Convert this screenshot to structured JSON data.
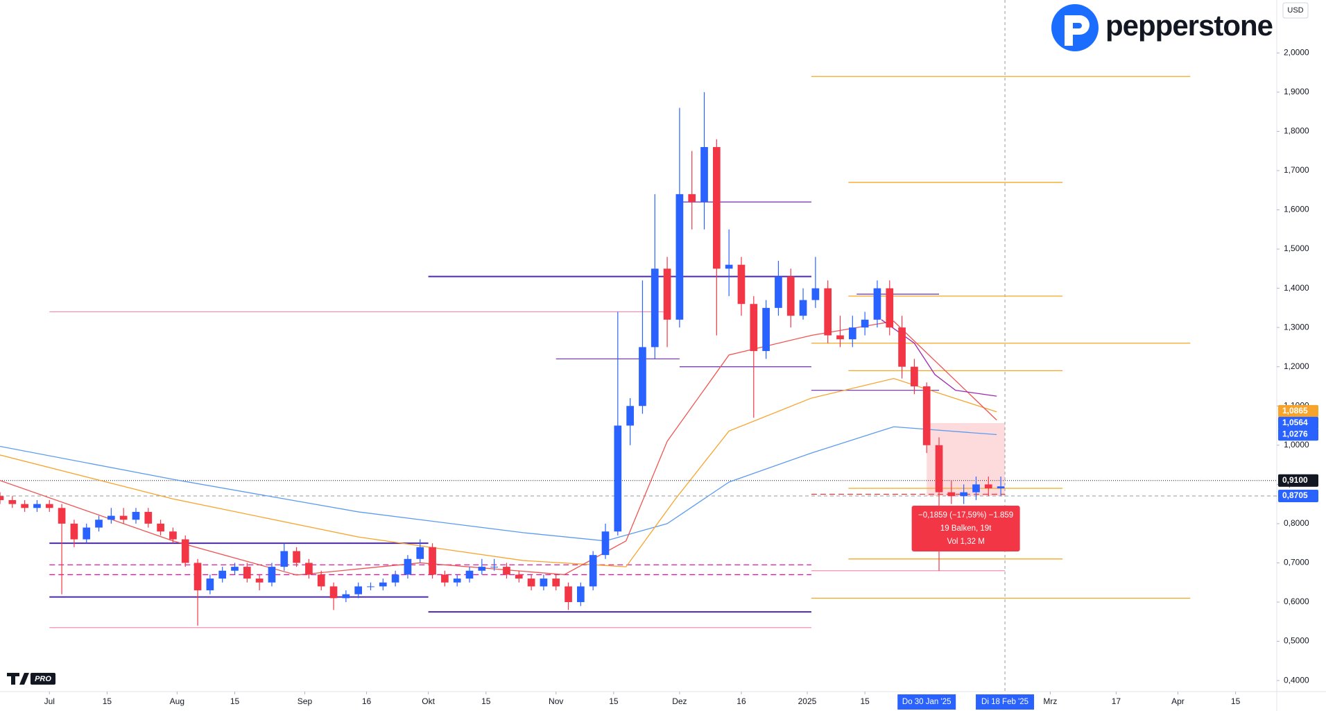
{
  "header": {
    "brand": "pepperstone",
    "tv_badge": "PRO",
    "currency": "USD"
  },
  "chart_data": {
    "type": "candlestick",
    "x": [
      -12,
      -9,
      -6,
      -3,
      0,
      3,
      6,
      9,
      12,
      15,
      18,
      21,
      24,
      27,
      30,
      33,
      36,
      39,
      42,
      45,
      48,
      51,
      54,
      57,
      60,
      63,
      66,
      69,
      72,
      75,
      78,
      81,
      84,
      87,
      90,
      93,
      96,
      99,
      102,
      105,
      108,
      111,
      114,
      117,
      120,
      123,
      126,
      129,
      132,
      135,
      138,
      141,
      144,
      147,
      150,
      153,
      156,
      159,
      162,
      165,
      168,
      171,
      174,
      177,
      180,
      183,
      186,
      189,
      192,
      195,
      198,
      201,
      204,
      207,
      210,
      213,
      216,
      219,
      222,
      225,
      228,
      231
    ],
    "open": [
      0.87,
      0.86,
      0.85,
      0.84,
      0.85,
      0.84,
      0.8,
      0.76,
      0.79,
      0.81,
      0.82,
      0.81,
      0.83,
      0.8,
      0.78,
      0.76,
      0.7,
      0.63,
      0.66,
      0.68,
      0.69,
      0.66,
      0.65,
      0.69,
      0.73,
      0.7,
      0.67,
      0.64,
      0.61,
      0.62,
      0.64,
      0.64,
      0.65,
      0.67,
      0.71,
      0.74,
      0.67,
      0.65,
      0.66,
      0.68,
      0.69,
      0.69,
      0.67,
      0.66,
      0.64,
      0.66,
      0.64,
      0.6,
      0.64,
      0.72,
      0.78,
      1.05,
      1.1,
      1.25,
      1.45,
      1.32,
      1.64,
      1.62,
      1.76,
      1.45,
      1.46,
      1.36,
      1.24,
      1.35,
      1.43,
      1.33,
      1.37,
      1.4,
      1.28,
      1.27,
      1.3,
      1.32,
      1.4,
      1.3,
      1.2,
      1.15,
      1.0,
      0.88,
      0.87,
      0.88,
      0.9,
      0.89
    ],
    "high": [
      0.88,
      0.87,
      0.86,
      0.86,
      0.86,
      0.85,
      0.81,
      0.8,
      0.82,
      0.84,
      0.84,
      0.84,
      0.84,
      0.81,
      0.79,
      0.77,
      0.71,
      0.67,
      0.69,
      0.7,
      0.7,
      0.67,
      0.7,
      0.75,
      0.74,
      0.71,
      0.68,
      0.65,
      0.63,
      0.65,
      0.65,
      0.66,
      0.68,
      0.72,
      0.76,
      0.75,
      0.68,
      0.67,
      0.69,
      0.71,
      0.71,
      0.7,
      0.68,
      0.67,
      0.67,
      0.67,
      0.65,
      0.65,
      0.73,
      0.8,
      1.34,
      1.12,
      1.42,
      1.64,
      1.48,
      1.86,
      1.75,
      1.9,
      1.78,
      1.55,
      1.48,
      1.38,
      1.37,
      1.47,
      1.45,
      1.4,
      1.48,
      1.42,
      1.33,
      1.33,
      1.34,
      1.42,
      1.42,
      1.33,
      1.22,
      1.16,
      1.02,
      0.91,
      0.9,
      0.92,
      0.92,
      0.92
    ],
    "low": [
      0.85,
      0.84,
      0.83,
      0.83,
      0.83,
      0.62,
      0.74,
      0.75,
      0.78,
      0.8,
      0.8,
      0.8,
      0.79,
      0.77,
      0.75,
      0.69,
      0.54,
      0.62,
      0.65,
      0.67,
      0.65,
      0.63,
      0.64,
      0.68,
      0.69,
      0.66,
      0.63,
      0.58,
      0.6,
      0.61,
      0.63,
      0.63,
      0.64,
      0.66,
      0.7,
      0.66,
      0.64,
      0.64,
      0.65,
      0.67,
      0.68,
      0.66,
      0.65,
      0.63,
      0.63,
      0.63,
      0.58,
      0.59,
      0.63,
      0.71,
      0.77,
      1.0,
      1.08,
      1.22,
      1.25,
      1.3,
      1.55,
      1.55,
      1.28,
      1.38,
      1.33,
      1.07,
      1.22,
      1.33,
      1.3,
      1.32,
      1.35,
      1.26,
      1.25,
      1.25,
      1.28,
      1.3,
      1.28,
      1.17,
      1.13,
      0.98,
      0.68,
      0.85,
      0.85,
      0.86,
      0.87,
      0.87
    ],
    "close": [
      0.86,
      0.85,
      0.84,
      0.85,
      0.84,
      0.8,
      0.76,
      0.79,
      0.81,
      0.82,
      0.81,
      0.83,
      0.8,
      0.78,
      0.76,
      0.7,
      0.63,
      0.66,
      0.68,
      0.69,
      0.66,
      0.65,
      0.69,
      0.73,
      0.7,
      0.67,
      0.64,
      0.61,
      0.62,
      0.64,
      0.64,
      0.65,
      0.67,
      0.71,
      0.74,
      0.67,
      0.65,
      0.66,
      0.68,
      0.69,
      0.69,
      0.67,
      0.66,
      0.64,
      0.66,
      0.64,
      0.6,
      0.64,
      0.72,
      0.78,
      1.05,
      1.1,
      1.25,
      1.45,
      1.32,
      1.64,
      1.62,
      1.76,
      1.45,
      1.46,
      1.36,
      1.24,
      1.35,
      1.43,
      1.33,
      1.37,
      1.4,
      1.28,
      1.27,
      1.3,
      1.32,
      1.4,
      1.3,
      1.2,
      1.15,
      1.0,
      0.88,
      0.87,
      0.88,
      0.9,
      0.89,
      0.895
    ],
    "up_color": "#2962ff",
    "down_color": "#f23645",
    "lines": [
      {
        "color": "#5b9bef",
        "x": [
          -12,
          30,
          75,
          115,
          135,
          150,
          165,
          185,
          205,
          230
        ],
        "values": [
          0.997,
          0.913,
          0.83,
          0.777,
          0.756,
          0.8,
          0.906,
          0.98,
          1.047,
          1.027
        ]
      },
      {
        "color": "#f7a42c",
        "x": [
          -12,
          30,
          75,
          115,
          140,
          152,
          165,
          185,
          205,
          230
        ],
        "values": [
          0.975,
          0.863,
          0.766,
          0.706,
          0.69,
          0.863,
          1.036,
          1.12,
          1.17,
          1.085
        ]
      },
      {
        "color": "#ef5350",
        "x": [
          -12,
          30,
          60,
          90,
          125,
          140,
          150,
          165,
          185,
          205,
          230
        ],
        "values": [
          0.91,
          0.756,
          0.669,
          0.7,
          0.67,
          0.756,
          1.01,
          1.23,
          1.28,
          1.316,
          1.064
        ]
      },
      {
        "color": "#9c27b0",
        "x": [
          202,
          210,
          215,
          220,
          230
        ],
        "values": [
          1.32,
          1.26,
          1.18,
          1.14,
          1.125
        ]
      }
    ],
    "levels": [
      {
        "value": 1.94,
        "x": [
          185,
          277
        ],
        "color": "#f5a623",
        "dash": false
      },
      {
        "value": 1.67,
        "x": [
          194,
          246
        ],
        "color": "#f5a623",
        "dash": false
      },
      {
        "value": 1.38,
        "x": [
          194,
          246
        ],
        "color": "#f5a623",
        "dash": false
      },
      {
        "value": 1.26,
        "x": [
          185,
          277
        ],
        "color": "#f5a623",
        "dash": false
      },
      {
        "value": 1.19,
        "x": [
          194,
          246
        ],
        "color": "#f5a623",
        "dash": false
      },
      {
        "value": 0.89,
        "x": [
          194,
          246
        ],
        "color": "#f5a623",
        "dash": false
      },
      {
        "value": 0.71,
        "x": [
          194,
          246
        ],
        "color": "#f5a623",
        "dash": false
      },
      {
        "value": 0.61,
        "x": [
          185,
          277
        ],
        "color": "#f5a623",
        "dash": false
      },
      {
        "value": 1.43,
        "x": [
          92,
          185
        ],
        "color": "#4a2aa8",
        "dash": false
      },
      {
        "value": 1.62,
        "x": [
          153,
          185
        ],
        "color": "#7b3fb5",
        "dash": false
      },
      {
        "value": 1.22,
        "x": [
          123,
          153
        ],
        "color": "#7b3fb5",
        "dash": false
      },
      {
        "value": 1.2,
        "x": [
          153,
          185
        ],
        "color": "#7b3fb5",
        "dash": false
      },
      {
        "value": 1.14,
        "x": [
          185,
          216
        ],
        "color": "#7b3fb5",
        "dash": false
      },
      {
        "value": 1.385,
        "x": [
          196,
          216
        ],
        "color": "#7b3fb5",
        "dash": false
      },
      {
        "value": 0.575,
        "x": [
          92,
          185
        ],
        "color": "#4a2aa8",
        "dash": false
      },
      {
        "value": 0.613,
        "x": [
          0,
          92
        ],
        "color": "#4a2aa8",
        "dash": false
      },
      {
        "value": 0.75,
        "x": [
          0,
          92
        ],
        "color": "#4a2aa8",
        "dash": false
      },
      {
        "value": 1.34,
        "x": [
          0,
          150
        ],
        "color": "#f48fb1",
        "dash": false
      },
      {
        "value": 0.535,
        "x": [
          0,
          185
        ],
        "color": "#f48fb1",
        "dash": false
      },
      {
        "value": 0.68,
        "x": [
          185,
          232
        ],
        "color": "#f48fb1",
        "dash": false
      },
      {
        "value": 0.695,
        "x": [
          0,
          185
        ],
        "color": "#d81b9c",
        "dash": true
      },
      {
        "value": 0.67,
        "x": [
          0,
          185
        ],
        "color": "#d81b9c",
        "dash": true
      },
      {
        "value": 0.875,
        "x": [
          185,
          232
        ],
        "color": "#e53935",
        "dash": true
      }
    ],
    "price_labels": [
      {
        "value": 1.0865,
        "label": "1,0865",
        "color": "#f7a42c"
      },
      {
        "value": 1.0564,
        "label": "1,0564",
        "color": "#2962ff"
      },
      {
        "value": 1.0276,
        "label": "1,0276",
        "color": "#2962ff"
      },
      {
        "value": 0.91,
        "label": "0,9100",
        "color": "#131722"
      },
      {
        "value": 0.8705,
        "label": "0,8705",
        "color": "#2962ff"
      }
    ],
    "measure": {
      "x": [
        213,
        232
      ],
      "labels": [
        "Do 30 Jan '25",
        "Di 18 Feb '25"
      ],
      "lines": [
        "−0,1859 (−17,59%) −1.859",
        "19 Balken, 19t",
        "Vol 1,32 M"
      ]
    },
    "xlim": [
      -12,
      298
    ],
    "ylim": [
      0.4,
      2.08
    ],
    "xticks": [
      {
        "value": 0,
        "label": "Jul"
      },
      {
        "value": 14,
        "label": "15"
      },
      {
        "value": 31,
        "label": "Aug"
      },
      {
        "value": 45,
        "label": "15"
      },
      {
        "value": 62,
        "label": "Sep"
      },
      {
        "value": 77,
        "label": "16"
      },
      {
        "value": 92,
        "label": "Okt"
      },
      {
        "value": 106,
        "label": "15"
      },
      {
        "value": 123,
        "label": "Nov"
      },
      {
        "value": 137,
        "label": "15"
      },
      {
        "value": 153,
        "label": "Dez"
      },
      {
        "value": 168,
        "label": "16"
      },
      {
        "value": 184,
        "label": "2025"
      },
      {
        "value": 198,
        "label": "15"
      },
      {
        "value": 243,
        "label": "Mrz"
      },
      {
        "value": 259,
        "label": "17"
      },
      {
        "value": 274,
        "label": "Apr"
      },
      {
        "value": 288,
        "label": "15"
      }
    ],
    "yticks": [
      {
        "value": 2.0,
        "label": "2,0000"
      },
      {
        "value": 1.9,
        "label": "1,9000"
      },
      {
        "value": 1.8,
        "label": "1,8000"
      },
      {
        "value": 1.7,
        "label": "1,7000"
      },
      {
        "value": 1.6,
        "label": "1,6000"
      },
      {
        "value": 1.5,
        "label": "1,5000"
      },
      {
        "value": 1.4,
        "label": "1,4000"
      },
      {
        "value": 1.3,
        "label": "1,3000"
      },
      {
        "value": 1.2,
        "label": "1,2000"
      },
      {
        "value": 1.1,
        "label": "1,1000"
      },
      {
        "value": 1.0,
        "label": "1,0000"
      },
      {
        "value": 0.9,
        "label": "0,9000"
      },
      {
        "value": 0.8,
        "label": "0,8000"
      },
      {
        "value": 0.7,
        "label": "0,7000"
      },
      {
        "value": 0.6,
        "label": "0,6000"
      },
      {
        "value": 0.5,
        "label": "0,5000"
      },
      {
        "value": 0.4,
        "label": "0,4000"
      }
    ],
    "grid": false
  }
}
